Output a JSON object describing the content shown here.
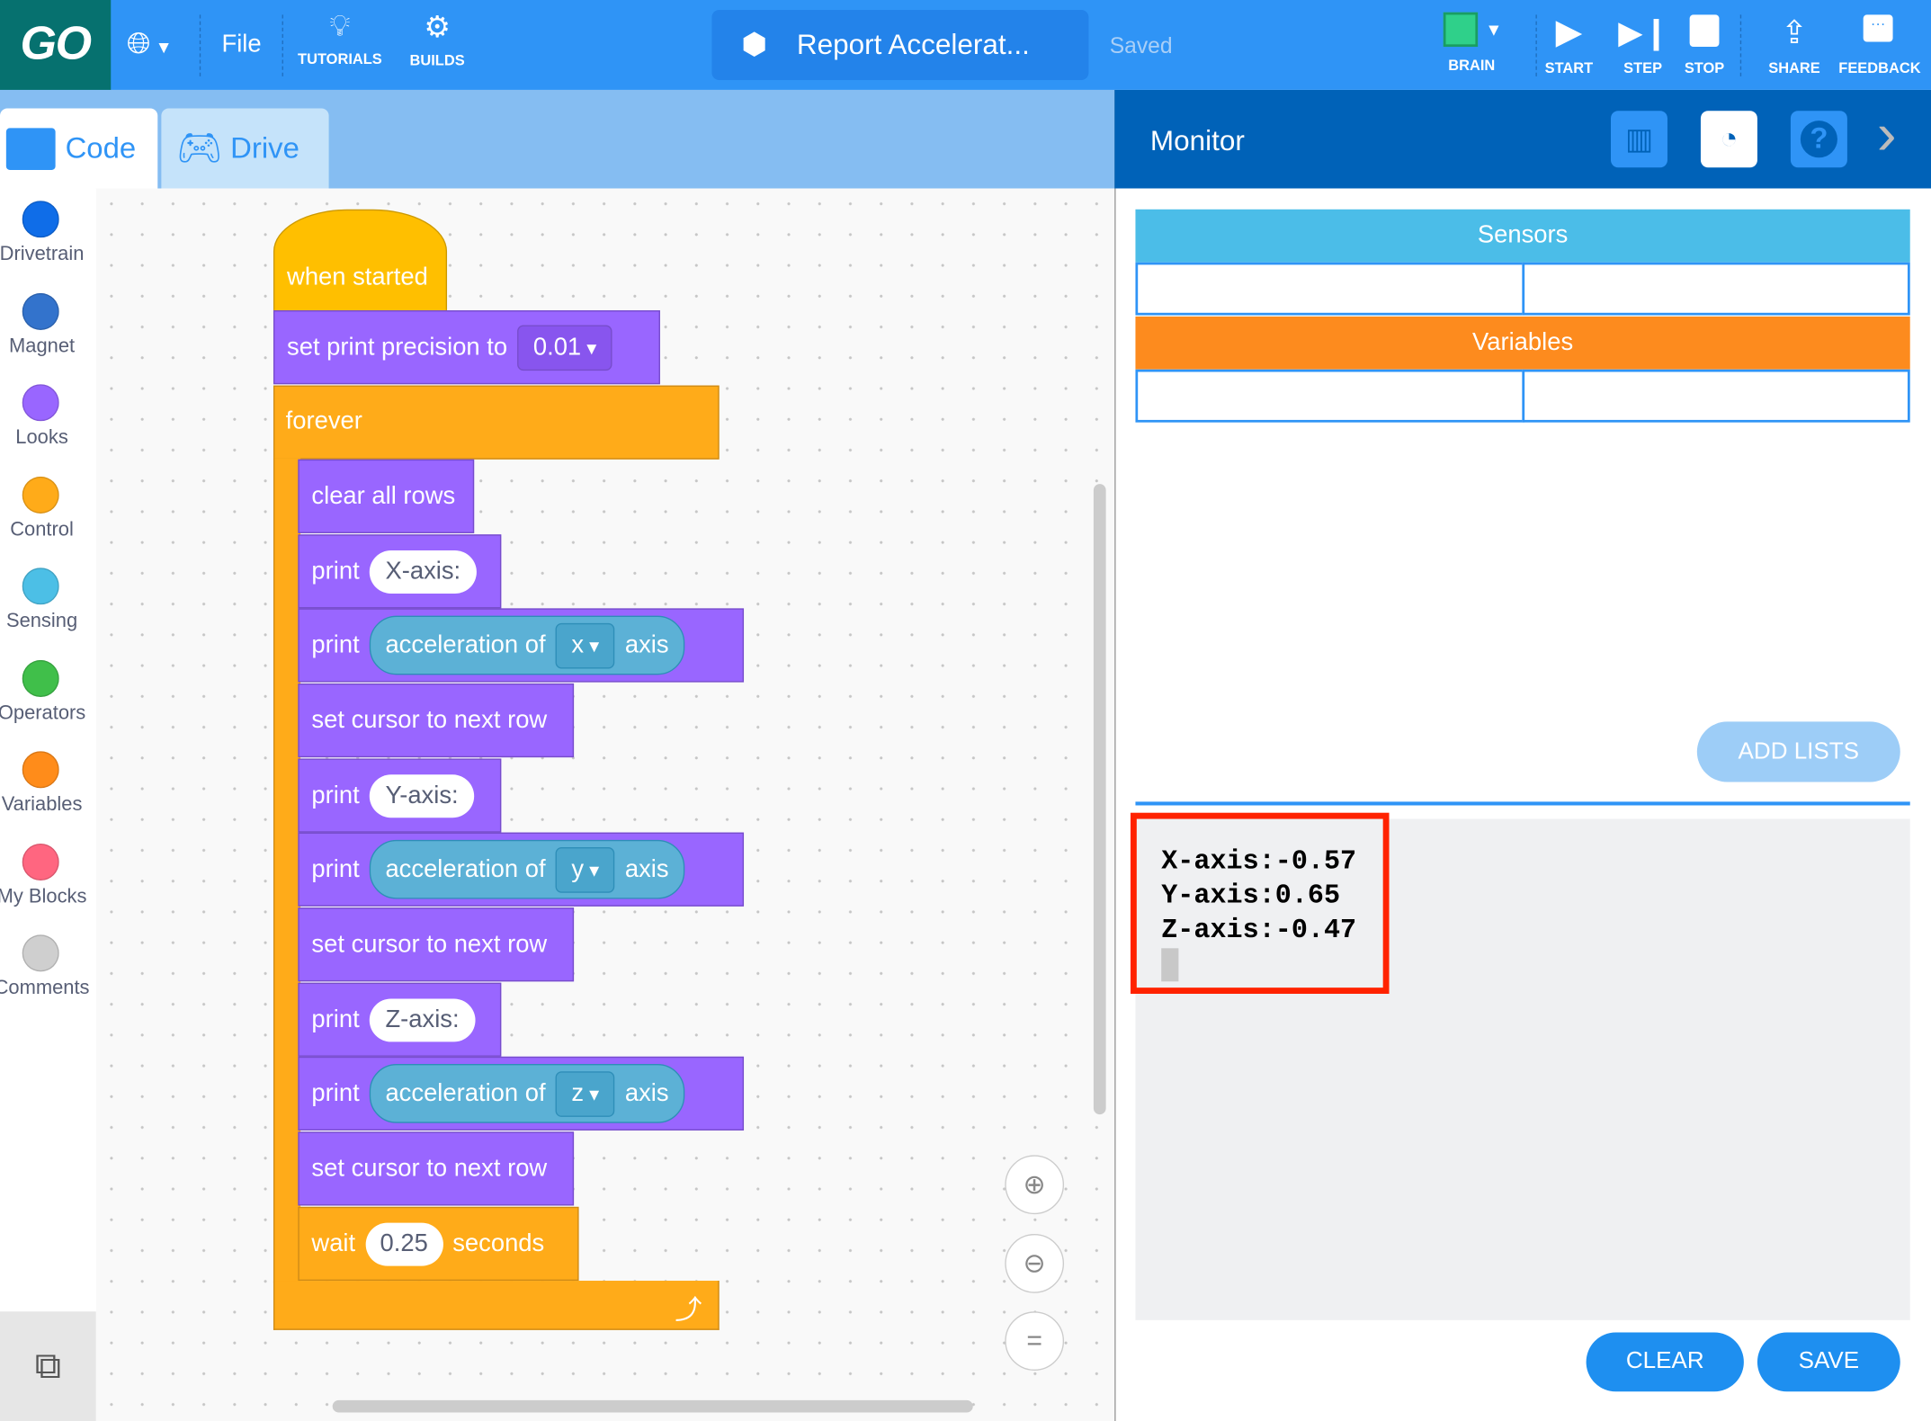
{
  "topbar": {
    "logo": "GO",
    "language_icon": "globe-icon",
    "file": "File",
    "tutorials": "TUTORIALS",
    "builds": "BUILDS",
    "project_title": "Report Accelerat...",
    "save_status": "Saved",
    "brain": "BRAIN",
    "start": "START",
    "step": "STEP",
    "stop": "STOP",
    "share": "SHARE",
    "feedback": "FEEDBACK"
  },
  "tabs": [
    {
      "label": "Code",
      "active": true
    },
    {
      "label": "Drive",
      "active": false
    }
  ],
  "categories": [
    {
      "label": "Drivetrain",
      "color": "#0f6de8"
    },
    {
      "label": "Magnet",
      "color": "#3373cc"
    },
    {
      "label": "Looks",
      "color": "#9966ff"
    },
    {
      "label": "Control",
      "color": "#ffab19"
    },
    {
      "label": "Sensing",
      "color": "#4cbfe6"
    },
    {
      "label": "Operators",
      "color": "#40bf4a"
    },
    {
      "label": "Variables",
      "color": "#ff8c1a"
    },
    {
      "label": "My Blocks",
      "color": "#ff6680"
    },
    {
      "label": "Comments",
      "color": "#cfcfcf"
    }
  ],
  "blocks": {
    "hat": "when started",
    "precision_label": "set print precision to",
    "precision_value": "0.01",
    "forever": "forever",
    "clear": "clear all rows",
    "print": "print",
    "x_text": "X-axis:",
    "y_text": "Y-axis:",
    "z_text": "Z-axis:",
    "accel": "acceleration of",
    "axis": "axis",
    "x": "x",
    "y": "y",
    "z": "z",
    "next_row": "set cursor to next row",
    "wait": "wait",
    "wait_value": "0.25",
    "seconds": "seconds"
  },
  "monitor": {
    "title": "Monitor",
    "sensors": "Sensors",
    "variables": "Variables",
    "add_lists": "ADD LISTS",
    "console_lines": [
      "X-axis:-0.57",
      "Y-axis:0.65",
      "Z-axis:-0.47"
    ],
    "clear": "CLEAR",
    "save": "SAVE"
  },
  "colors": {
    "highlight": "#ff2200",
    "accent": "#2f94f6"
  }
}
